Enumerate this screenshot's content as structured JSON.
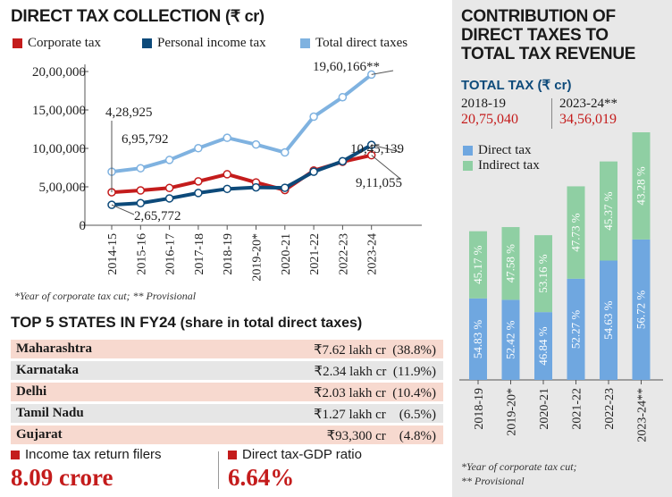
{
  "left": {
    "title": "DIRECT TAX COLLECTION",
    "unit": "(₹ cr)",
    "footnote": "*Year of corporate tax cut; ** Provisional"
  },
  "chart_data": [
    {
      "type": "line",
      "title": "DIRECT TAX COLLECTION (₹ cr)",
      "x": [
        "2014-15",
        "2015-16",
        "2016-17",
        "2017-18",
        "2018-19",
        "2019-20*",
        "2020-21",
        "2021-22",
        "2022-23",
        "2023-24"
      ],
      "series": [
        {
          "name": "Corporate tax",
          "color": "#c41c1c",
          "values": [
            428925,
            453228,
            484924,
            571202,
            663572,
            556876,
            457719,
            712037,
            825834,
            911055
          ]
        },
        {
          "name": "Personal income tax",
          "color": "#0d4a7a",
          "values": [
            265772,
            287637,
            349503,
            419884,
            473003,
            492654,
            487560,
            696243,
            833307,
            1045139
          ]
        },
        {
          "name": "Total direct taxes",
          "color": "#7fb2e0",
          "values": [
            695792,
            741945,
            849713,
            1002738,
            1137718,
            1050681,
            947176,
            1412422,
            1666141,
            1960166
          ]
        }
      ],
      "yticks": [
        "0",
        "5,00,000",
        "10,00,000",
        "15,00,000",
        "20,00,000"
      ],
      "ylim": [
        0,
        2000000
      ],
      "annotations": [
        "4,28,925",
        "6,95,792",
        "2,65,772",
        "19,60,166**",
        "10,45,139",
        "9,11,055"
      ],
      "legend": "top"
    },
    {
      "type": "bar",
      "title": "CONTRIBUTION OF DIRECT TAXES TO TOTAL TAX REVENUE",
      "categories": [
        "2018-19",
        "2019-20*",
        "2020-21",
        "2021-22",
        "2022-23",
        "2023-24**"
      ],
      "series": [
        {
          "name": "Direct tax",
          "color": "#6fa7e0",
          "values": [
            54.83,
            52.42,
            46.84,
            52.27,
            54.63,
            56.72
          ]
        },
        {
          "name": "Indirect tax",
          "color": "#8fcfa3",
          "values": [
            45.17,
            47.58,
            53.16,
            47.73,
            45.37,
            43.28
          ]
        }
      ],
      "labels_direct": [
        "54.83 %",
        "52.42 %",
        "46.84 %",
        "52.27 %",
        "54.63 %",
        "56.72 %"
      ],
      "labels_indirect": [
        "45.17 %",
        "47.58 %",
        "53.16 %",
        "47.73 %",
        "45.37 %",
        "43.28 %"
      ],
      "total_tax": [
        2075040,
        2133030,
        2020000,
        2702000,
        3049000,
        3456019
      ],
      "stacked": true
    }
  ],
  "right": {
    "title_lines": [
      "CONTRIBUTION OF",
      "DIRECT TAXES TO",
      "TOTAL TAX REVENUE"
    ],
    "total_tax_label": "TOTAL TAX (₹ cr)",
    "year1": "2018-19",
    "value1": "20,75,040",
    "year2": "2023-24**",
    "value2": "34,56,019",
    "footnote_line1": "*Year of corporate tax cut;",
    "footnote_line2": "** Provisional"
  },
  "states": {
    "title": "TOP 5 STATES IN FY24",
    "subtitle": "(share in total direct taxes)",
    "rows": [
      {
        "name": "Maharashtra",
        "value": "₹7.62 lakh cr  (38.8%)",
        "bg": "#f7d9cf"
      },
      {
        "name": "Karnataka",
        "value": "₹2.34 lakh cr  (11.9%)",
        "bg": "#e6e6e6"
      },
      {
        "name": "Delhi",
        "value": "₹2.03 lakh cr  (10.4%)",
        "bg": "#f7d9cf"
      },
      {
        "name": "Tamil Nadu",
        "value": "₹1.27 lakh cr    (6.5%)",
        "bg": "#e6e6e6"
      },
      {
        "name": "Gujarat",
        "value": "₹93,300 cr    (4.8%)",
        "bg": "#f7d9cf"
      }
    ]
  },
  "kpis": [
    {
      "label": "Income tax return filers",
      "value": "8.09 crore"
    },
    {
      "label": "Direct tax-GDP ratio",
      "value": "6.64%"
    }
  ],
  "colors": {
    "accent_red": "#c41c1c",
    "navy": "#0d4a7a",
    "light_blue": "#7fb2e0",
    "right_bg": "#e8e8e8"
  }
}
